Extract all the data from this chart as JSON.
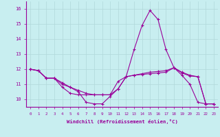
{
  "xlabel": "Windchill (Refroidissement éolien,°C)",
  "background_color": "#c8eef0",
  "grid_color": "#b0d8da",
  "line_color": "#990099",
  "xlim": [
    -0.5,
    23.5
  ],
  "ylim": [
    9.5,
    16.5
  ],
  "yticks": [
    10,
    11,
    12,
    13,
    14,
    15,
    16
  ],
  "xticks": [
    0,
    1,
    2,
    3,
    4,
    5,
    6,
    7,
    8,
    9,
    10,
    11,
    12,
    13,
    14,
    15,
    16,
    17,
    18,
    19,
    20,
    21,
    22,
    23
  ],
  "series": [
    [
      12.0,
      11.9,
      11.4,
      11.4,
      11.0,
      10.8,
      10.5,
      9.8,
      9.7,
      9.7,
      10.2,
      10.7,
      11.5,
      13.3,
      14.9,
      15.9,
      15.3,
      13.3,
      12.1,
      11.6,
      11.0,
      9.8,
      9.7,
      9.7
    ],
    [
      12.0,
      11.9,
      11.4,
      11.4,
      11.1,
      10.8,
      10.6,
      10.4,
      10.3,
      10.3,
      10.3,
      11.2,
      11.5,
      11.6,
      11.7,
      11.8,
      11.85,
      11.9,
      12.1,
      11.8,
      11.6,
      11.5,
      9.7,
      9.7
    ],
    [
      12.0,
      11.9,
      11.4,
      11.4,
      10.8,
      10.4,
      10.3,
      10.3,
      10.3,
      10.3,
      10.3,
      10.7,
      11.5,
      11.6,
      11.65,
      11.7,
      11.75,
      11.8,
      12.1,
      11.75,
      11.55,
      11.5,
      9.7,
      9.7
    ]
  ]
}
